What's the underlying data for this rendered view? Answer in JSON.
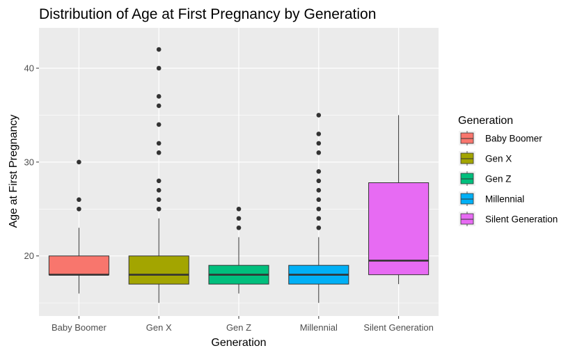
{
  "chart_data": {
    "type": "boxplot",
    "title": "Distribution of Age at First Pregnancy by Generation",
    "xlabel": "Generation",
    "ylabel": "Age at First Pregnancy",
    "ylim": [
      13.6,
      44.3
    ],
    "yticks": [
      20,
      30,
      40
    ],
    "ytick_labels": [
      "20",
      "30",
      "40"
    ],
    "grid": true,
    "panel_background": "#ebebeb",
    "legend": {
      "title": "Generation",
      "placement": "right"
    },
    "categories": [
      "Baby Boomer",
      "Gen X",
      "Gen Z",
      "Millennial",
      "Silent Generation"
    ],
    "series": [
      {
        "category": "Baby Boomer",
        "color": "#F8766D",
        "whisker_low": 16,
        "q1": 18,
        "median": 18,
        "q3": 20,
        "whisker_high": 23,
        "outliers": [
          25,
          26,
          30
        ]
      },
      {
        "category": "Gen X",
        "color": "#A3A500",
        "whisker_low": 15,
        "q1": 17,
        "median": 18,
        "q3": 20,
        "whisker_high": 24,
        "outliers": [
          25,
          26,
          27,
          28,
          31,
          32,
          34,
          36,
          37,
          40,
          42
        ]
      },
      {
        "category": "Gen Z",
        "color": "#00BF7D",
        "whisker_low": 16,
        "q1": 17,
        "median": 18,
        "q3": 19,
        "whisker_high": 22,
        "outliers": [
          23,
          24,
          25
        ]
      },
      {
        "category": "Millennial",
        "color": "#00B0F6",
        "whisker_low": 15,
        "q1": 17,
        "median": 18,
        "q3": 19,
        "whisker_high": 22,
        "outliers": [
          23,
          24,
          25,
          26,
          27,
          28,
          29,
          31,
          32,
          33,
          35
        ]
      },
      {
        "category": "Silent Generation",
        "color": "#E76BF3",
        "whisker_low": 17,
        "q1": 18,
        "median": 19.5,
        "q3": 27.8,
        "whisker_high": 35,
        "outliers": []
      }
    ]
  }
}
